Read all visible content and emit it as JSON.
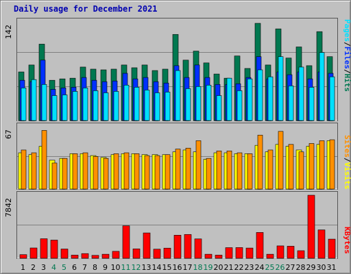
{
  "title": "Daily usage for December 2021",
  "colors": {
    "hits": "#007850",
    "files": "#0030ff",
    "pages": "#00e0ff",
    "visits": "#ffff00",
    "sites": "#ff9000",
    "kbytes": "#ff0000",
    "weekend": "#007850",
    "weekday": "#000000"
  },
  "chart_data": [
    {
      "type": "bar",
      "categories": [
        "1",
        "2",
        "3",
        "4",
        "5",
        "6",
        "7",
        "8",
        "9",
        "10",
        "11",
        "12",
        "13",
        "14",
        "15",
        "16",
        "17",
        "18",
        "19",
        "20",
        "21",
        "22",
        "23",
        "24",
        "25",
        "26",
        "27",
        "28",
        "29",
        "30",
        "31"
      ],
      "weekend_days": [
        "4",
        "5",
        "11",
        "12",
        "18",
        "19",
        "25",
        "26"
      ],
      "ymax_label": "142",
      "ylim": [
        0,
        142
      ],
      "legend": [
        "Pages",
        "/",
        "Files",
        "/",
        "Hits"
      ],
      "series": [
        {
          "name": "Hits",
          "values": [
            70,
            80,
            110,
            58,
            60,
            61,
            77,
            74,
            73,
            74,
            80,
            76,
            80,
            72,
            74,
            124,
            87,
            100,
            83,
            67,
            61,
            93,
            75,
            140,
            80,
            132,
            90,
            106,
            79,
            128,
            92
          ]
        },
        {
          "name": "Files",
          "values": [
            58,
            56,
            87,
            45,
            47,
            48,
            62,
            58,
            56,
            57,
            68,
            60,
            62,
            56,
            54,
            79,
            62,
            80,
            62,
            52,
            52,
            53,
            62,
            92,
            60,
            70,
            66,
            70,
            60,
            70,
            68
          ]
        },
        {
          "name": "Pages",
          "values": [
            47,
            59,
            52,
            36,
            37,
            42,
            47,
            43,
            40,
            42,
            51,
            48,
            44,
            40,
            41,
            72,
            46,
            49,
            51,
            36,
            61,
            43,
            60,
            73,
            63,
            92,
            50,
            77,
            48,
            98,
            63
          ]
        }
      ]
    },
    {
      "type": "bar",
      "categories": [
        "1",
        "2",
        "3",
        "4",
        "5",
        "6",
        "7",
        "8",
        "9",
        "10",
        "11",
        "12",
        "13",
        "14",
        "15",
        "16",
        "17",
        "18",
        "19",
        "20",
        "21",
        "22",
        "23",
        "24",
        "25",
        "26",
        "27",
        "28",
        "29",
        "30",
        "31"
      ],
      "ymax_label": "67",
      "ylim": [
        0,
        67
      ],
      "legend": [
        "Sites",
        "/",
        "Visits"
      ],
      "series": [
        {
          "name": "Visits",
          "values": [
            39,
            37,
            46,
            31,
            33,
            38,
            38,
            36,
            34,
            37,
            38,
            38,
            37,
            37,
            37,
            40,
            42,
            40,
            32,
            39,
            39,
            38,
            38,
            47,
            40,
            48,
            46,
            42,
            46,
            48,
            52
          ]
        },
        {
          "name": "Sites",
          "values": [
            42,
            39,
            63,
            28,
            33,
            38,
            39,
            35,
            33,
            38,
            39,
            38,
            36,
            36,
            37,
            43,
            44,
            52,
            33,
            41,
            41,
            39,
            38,
            58,
            42,
            62,
            48,
            40,
            49,
            52,
            53
          ]
        }
      ]
    },
    {
      "type": "bar",
      "categories": [
        "1",
        "2",
        "3",
        "4",
        "5",
        "6",
        "7",
        "8",
        "9",
        "10",
        "11",
        "12",
        "13",
        "14",
        "15",
        "16",
        "17",
        "18",
        "19",
        "20",
        "21",
        "22",
        "23",
        "24",
        "25",
        "26",
        "27",
        "28",
        "29",
        "30",
        "31"
      ],
      "ymax_label": "7842",
      "ylim": [
        0,
        7842
      ],
      "legend": [
        "KBytes"
      ],
      "series": [
        {
          "name": "KBytes",
          "values": [
            450,
            1280,
            2430,
            2260,
            1150,
            390,
            580,
            360,
            500,
            860,
            4040,
            1170,
            3150,
            1130,
            1260,
            2870,
            2960,
            2410,
            500,
            390,
            1320,
            1330,
            1270,
            3210,
            500,
            1540,
            1500,
            940,
            7842,
            3530,
            2380
          ]
        }
      ]
    }
  ]
}
